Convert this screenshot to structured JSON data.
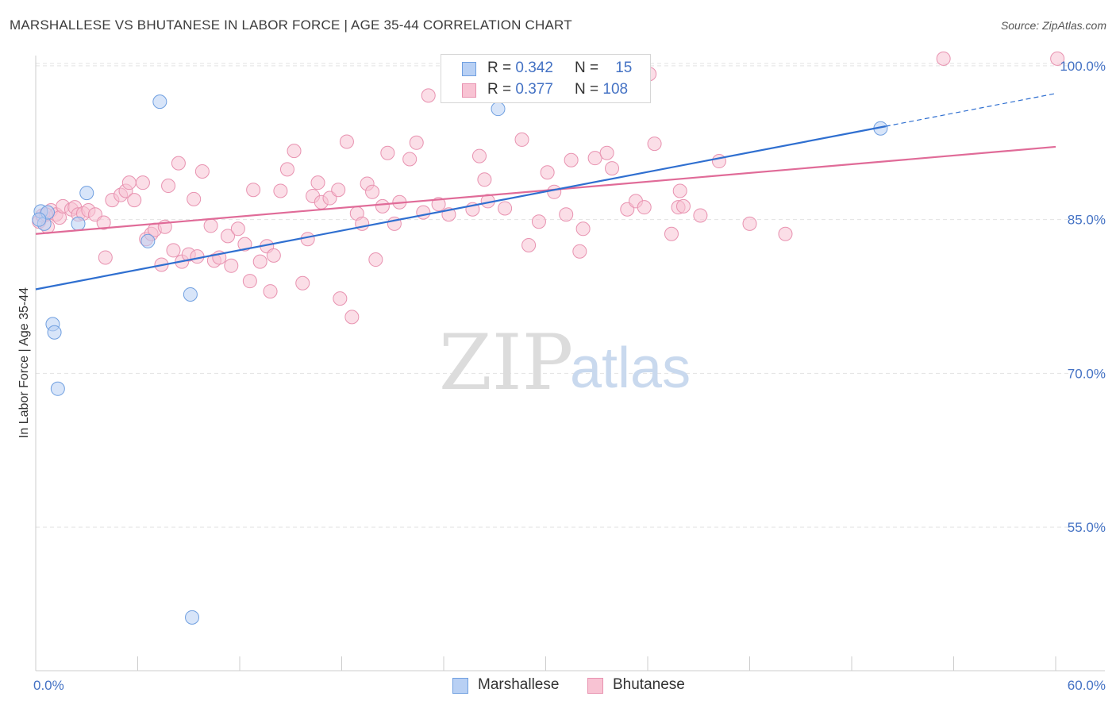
{
  "header": {
    "title": "MARSHALLESE VS BHUTANESE IN LABOR FORCE | AGE 35-44 CORRELATION CHART",
    "source": "Source: ZipAtlas.com"
  },
  "watermark": {
    "zip": "ZIP",
    "atlas": "atlas"
  },
  "colors": {
    "marshallese_fill": "#b8d0f4",
    "marshallese_stroke": "#6f9fe0",
    "marshallese_line": "#2f6fd0",
    "bhutanese_fill": "#f8c3d3",
    "bhutanese_stroke": "#e892b0",
    "bhutanese_line": "#e06b98",
    "grid": "#e3e3e3",
    "axis": "#cccccc",
    "tick_label": "#4472c4"
  },
  "legend": {
    "rows": [
      {
        "r_label": "R =",
        "r_value": "0.342",
        "n_label": "N =",
        "n_value": "15"
      },
      {
        "r_label": "R =",
        "r_value": "0.377",
        "n_label": "N =",
        "n_value": "108"
      }
    ],
    "bottom": [
      "Marshallese",
      "Bhutanese"
    ]
  },
  "chart_data": {
    "type": "scatter",
    "title": "MARSHALLESE VS BHUTANESE IN LABOR FORCE | AGE 35-44 CORRELATION CHART",
    "xlabel": "",
    "ylabel": "In Labor Force | Age 35-44",
    "xlim": [
      0,
      60
    ],
    "ylim": [
      41,
      101
    ],
    "x_tick_labels": [
      "0.0%",
      "60.0%"
    ],
    "y_ticks": [
      55,
      70,
      85,
      100
    ],
    "y_tick_labels": [
      "55.0%",
      "70.0%",
      "85.0%",
      "100.0%"
    ],
    "grid": "horizontal dashed",
    "legend_position": "top-center",
    "series": [
      {
        "name": "Marshallese",
        "r": 0.342,
        "n": 15,
        "trend": {
          "x": [
            0,
            50
          ],
          "y": [
            78.2,
            94.1
          ],
          "dashed_to": [
            60,
            97.3
          ]
        },
        "points": [
          [
            0.3,
            85.8
          ],
          [
            0.5,
            84.6
          ],
          [
            0.7,
            85.7
          ],
          [
            1.0,
            74.8
          ],
          [
            1.1,
            74.0
          ],
          [
            1.3,
            68.5
          ],
          [
            2.5,
            84.6
          ],
          [
            3.0,
            87.6
          ],
          [
            6.6,
            82.9
          ],
          [
            7.3,
            96.5
          ],
          [
            9.1,
            77.7
          ],
          [
            9.2,
            46.2
          ],
          [
            27.2,
            95.8
          ],
          [
            49.7,
            93.9
          ],
          [
            0.2,
            85.0
          ]
        ]
      },
      {
        "name": "Bhutanese",
        "r": 0.377,
        "n": 108,
        "trend": {
          "x": [
            0,
            60
          ],
          "y": [
            83.6,
            92.1
          ]
        },
        "points": [
          [
            0.2,
            84.8
          ],
          [
            0.4,
            85.4
          ],
          [
            0.7,
            84.3
          ],
          [
            0.9,
            85.9
          ],
          [
            1.2,
            85.5
          ],
          [
            1.4,
            85.2
          ],
          [
            1.6,
            86.3
          ],
          [
            2.1,
            86.0
          ],
          [
            2.3,
            86.2
          ],
          [
            2.5,
            85.5
          ],
          [
            2.8,
            85.6
          ],
          [
            3.1,
            85.9
          ],
          [
            3.5,
            85.5
          ],
          [
            4.0,
            84.7
          ],
          [
            4.1,
            81.3
          ],
          [
            4.5,
            86.9
          ],
          [
            5.0,
            87.4
          ],
          [
            5.3,
            87.8
          ],
          [
            5.5,
            88.6
          ],
          [
            5.8,
            86.9
          ],
          [
            6.3,
            88.6
          ],
          [
            6.5,
            83.1
          ],
          [
            6.8,
            83.6
          ],
          [
            7.0,
            84.0
          ],
          [
            7.4,
            80.6
          ],
          [
            7.6,
            84.3
          ],
          [
            7.8,
            88.3
          ],
          [
            8.1,
            82.0
          ],
          [
            8.4,
            90.5
          ],
          [
            8.6,
            80.9
          ],
          [
            9.0,
            81.6
          ],
          [
            9.3,
            87.0
          ],
          [
            9.5,
            81.4
          ],
          [
            9.8,
            89.7
          ],
          [
            10.3,
            84.4
          ],
          [
            10.5,
            81.0
          ],
          [
            10.8,
            81.3
          ],
          [
            11.3,
            83.4
          ],
          [
            11.5,
            80.5
          ],
          [
            11.9,
            84.1
          ],
          [
            12.3,
            82.6
          ],
          [
            12.6,
            79.0
          ],
          [
            12.8,
            87.9
          ],
          [
            13.2,
            80.9
          ],
          [
            13.6,
            82.4
          ],
          [
            13.8,
            78.0
          ],
          [
            14.0,
            81.5
          ],
          [
            14.4,
            87.8
          ],
          [
            14.8,
            89.9
          ],
          [
            15.2,
            91.7
          ],
          [
            15.7,
            78.8
          ],
          [
            16.0,
            83.1
          ],
          [
            16.3,
            87.3
          ],
          [
            16.6,
            88.6
          ],
          [
            16.8,
            86.7
          ],
          [
            17.3,
            87.1
          ],
          [
            17.8,
            87.9
          ],
          [
            17.9,
            77.3
          ],
          [
            18.3,
            92.6
          ],
          [
            18.6,
            75.5
          ],
          [
            18.9,
            85.6
          ],
          [
            19.2,
            84.6
          ],
          [
            19.5,
            88.5
          ],
          [
            19.8,
            87.7
          ],
          [
            20.0,
            81.1
          ],
          [
            20.4,
            86.3
          ],
          [
            20.7,
            91.5
          ],
          [
            21.1,
            84.6
          ],
          [
            21.4,
            86.7
          ],
          [
            22.0,
            90.9
          ],
          [
            22.4,
            92.5
          ],
          [
            22.8,
            85.7
          ],
          [
            23.1,
            97.1
          ],
          [
            23.7,
            86.5
          ],
          [
            24.3,
            85.5
          ],
          [
            25.7,
            86.0
          ],
          [
            26.1,
            91.2
          ],
          [
            26.4,
            88.9
          ],
          [
            26.6,
            86.8
          ],
          [
            27.6,
            86.1
          ],
          [
            28.6,
            92.8
          ],
          [
            29.0,
            82.5
          ],
          [
            29.6,
            84.8
          ],
          [
            30.1,
            89.6
          ],
          [
            30.5,
            87.7
          ],
          [
            31.2,
            85.5
          ],
          [
            31.5,
            90.8
          ],
          [
            32.0,
            81.9
          ],
          [
            32.2,
            84.1
          ],
          [
            32.9,
            91.0
          ],
          [
            33.6,
            91.5
          ],
          [
            33.9,
            90.0
          ],
          [
            34.8,
            86.0
          ],
          [
            35.3,
            86.8
          ],
          [
            35.8,
            86.2
          ],
          [
            36.1,
            99.2
          ],
          [
            36.4,
            92.4
          ],
          [
            37.4,
            83.6
          ],
          [
            37.8,
            86.2
          ],
          [
            37.9,
            87.8
          ],
          [
            38.1,
            86.3
          ],
          [
            39.1,
            85.4
          ],
          [
            40.2,
            90.7
          ],
          [
            42.0,
            84.6
          ],
          [
            44.1,
            83.6
          ],
          [
            53.4,
            100.7
          ],
          [
            60.1,
            100.7
          ],
          [
            0.6,
            85.5
          ]
        ]
      }
    ]
  }
}
